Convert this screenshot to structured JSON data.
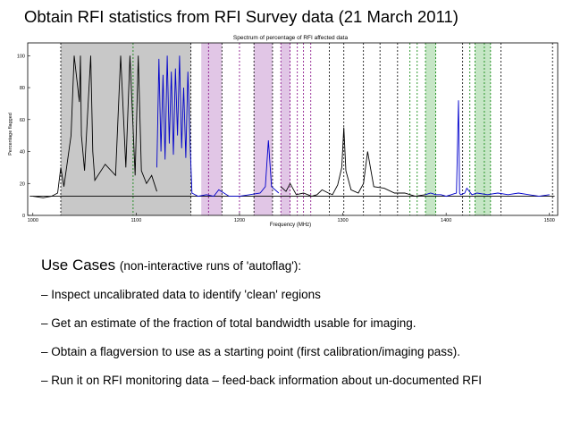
{
  "slide": {
    "title": "Obtain RFI statistics from RFI Survey data (21 March 2011)"
  },
  "chart_data": {
    "type": "line",
    "title": "Spectrum of percentage of RFI affected data",
    "xlabel": "Frequency (MHz)",
    "ylabel": "Percentage flagged",
    "xlim": [
      995,
      1508
    ],
    "ylim": [
      0,
      108
    ],
    "xticks": [
      1000,
      1100,
      1200,
      1300,
      1400,
      1500
    ],
    "yticks": [
      0,
      20,
      40,
      60,
      80,
      100
    ],
    "grid": false,
    "legend": "none",
    "colors": {
      "black_trace": "#000000",
      "blue_trace": "#0000cc",
      "gray_band": "#c8c8c8",
      "purple_band": "#d9b8e0",
      "green_band": "#b8e0b8",
      "black_dash": "#000000",
      "purple_dash": "#800080",
      "green_dash": "#008000"
    },
    "baseline": 12,
    "bands": [
      {
        "color": "gray",
        "x0": 1027,
        "x1": 1153
      },
      {
        "color": "purple",
        "x0": 1163,
        "x1": 1183
      },
      {
        "color": "purple",
        "x0": 1214,
        "x1": 1232
      },
      {
        "color": "purple",
        "x0": 1240,
        "x1": 1249
      },
      {
        "color": "green",
        "x0": 1380,
        "x1": 1390
      },
      {
        "color": "green",
        "x0": 1428,
        "x1": 1443
      }
    ],
    "vlines": [
      {
        "x": 1027,
        "color": "black"
      },
      {
        "x": 1097,
        "color": "green"
      },
      {
        "x": 1153,
        "color": "black"
      },
      {
        "x": 1170,
        "color": "purple"
      },
      {
        "x": 1183,
        "color": "black"
      },
      {
        "x": 1200,
        "color": "purple"
      },
      {
        "x": 1214,
        "color": "black"
      },
      {
        "x": 1232,
        "color": "black"
      },
      {
        "x": 1240,
        "color": "purple"
      },
      {
        "x": 1249,
        "color": "purple"
      },
      {
        "x": 1256,
        "color": "purple"
      },
      {
        "x": 1262,
        "color": "purple"
      },
      {
        "x": 1269,
        "color": "purple"
      },
      {
        "x": 1287,
        "color": "black"
      },
      {
        "x": 1301,
        "color": "black"
      },
      {
        "x": 1320,
        "color": "black"
      },
      {
        "x": 1336,
        "color": "black"
      },
      {
        "x": 1353,
        "color": "black"
      },
      {
        "x": 1365,
        "color": "green"
      },
      {
        "x": 1372,
        "color": "green"
      },
      {
        "x": 1380,
        "color": "green"
      },
      {
        "x": 1390,
        "color": "green"
      },
      {
        "x": 1416,
        "color": "black"
      },
      {
        "x": 1423,
        "color": "green"
      },
      {
        "x": 1428,
        "color": "green"
      },
      {
        "x": 1437,
        "color": "green"
      },
      {
        "x": 1443,
        "color": "green"
      },
      {
        "x": 1453,
        "color": "black"
      },
      {
        "x": 1503,
        "color": "black"
      }
    ],
    "series": [
      {
        "color": "black",
        "x": [
          1000,
          1010,
          1018,
          1024,
          1027,
          1030,
          1037,
          1040,
          1045,
          1046,
          1047,
          1050,
          1056,
          1058,
          1060,
          1070,
          1080,
          1085,
          1090,
          1094,
          1099,
          1102,
          1105,
          1110,
          1115,
          1120
        ],
        "y": [
          12,
          11,
          12,
          14,
          30,
          18,
          50,
          100,
          71,
          100,
          50,
          28,
          100,
          40,
          22,
          32,
          25,
          100,
          30,
          100,
          25,
          100,
          28,
          20,
          25,
          15
        ]
      },
      {
        "color": "blue",
        "x": [
          1120,
          1122,
          1124,
          1126,
          1128,
          1130,
          1132,
          1134,
          1136,
          1138,
          1140,
          1142,
          1144,
          1146,
          1148,
          1150,
          1152,
          1154,
          1160,
          1168,
          1175,
          1180,
          1190,
          1200,
          1210,
          1220,
          1225,
          1228,
          1231,
          1238
        ],
        "y": [
          30,
          98,
          40,
          88,
          35,
          100,
          45,
          90,
          38,
          92,
          50,
          100,
          42,
          80,
          36,
          90,
          48,
          14,
          12,
          13,
          12,
          16,
          12,
          12,
          13,
          14,
          18,
          47,
          18,
          14
        ]
      },
      {
        "color": "black",
        "x": [
          1240,
          1245,
          1249,
          1255,
          1262,
          1270,
          1275,
          1280,
          1286,
          1290,
          1295,
          1299,
          1301,
          1303,
          1308,
          1315,
          1320,
          1324,
          1330,
          1340,
          1350,
          1360,
          1370,
          1380
        ],
        "y": [
          18,
          15,
          20,
          13,
          14,
          12,
          13,
          16,
          14,
          13,
          19,
          30,
          55,
          28,
          16,
          14,
          20,
          40,
          18,
          17,
          14,
          14,
          12,
          13
        ]
      },
      {
        "color": "blue",
        "x": [
          1380,
          1385,
          1390,
          1395,
          1400,
          1405,
          1410,
          1412,
          1413,
          1414,
          1418,
          1420,
          1425,
          1430,
          1440,
          1450,
          1460,
          1470,
          1480,
          1490,
          1500
        ],
        "y": [
          13,
          14,
          13,
          13,
          12,
          13,
          14,
          72,
          14,
          13,
          14,
          17,
          13,
          14,
          13,
          14,
          13,
          14,
          13,
          12,
          13
        ]
      }
    ]
  },
  "content": {
    "heading_main": "Use Cases",
    "heading_paren": "(non-interactive runs of 'autoflag'):",
    "bullets": [
      "– Inspect uncalibrated data to identify 'clean' regions",
      "– Get an estimate of the fraction of total bandwidth usable for imaging.",
      "– Obtain a flagversion to use as a starting point (first calibration/imaging pass).",
      "– Run it on RFI monitoring data – feed-back information about un-documented RFI"
    ]
  }
}
